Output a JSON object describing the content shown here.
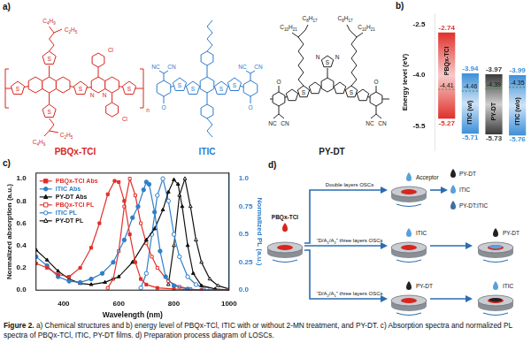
{
  "caption": {
    "label": "Figure 2.",
    "text": "a) Chemical structures and b) energy level of PBQx-TCl, ITIC with or without 2-MN treatment, and PY-DT. c) Absorption spectra and normalized PL spectra of PBQx-TCl, ITIC, PY-DT films. d) Preparation process diagram of LOSCs."
  },
  "panel_a": {
    "panel": "a)",
    "structures": [
      {
        "name": "PBQx-TCl",
        "color": "#d7261e",
        "atom_labels": [
          "S",
          "S",
          "S",
          "S",
          "S",
          "N",
          "N",
          "Cl",
          "Cl",
          "C4H9",
          "C2H5",
          "C4H9",
          "C2H5",
          "n"
        ]
      },
      {
        "name": "ITIC",
        "color": "#2b7bd0",
        "atom_labels": [
          "NC",
          "CN",
          "NC",
          "CN",
          "O",
          "O",
          "S",
          "S",
          "S",
          "S"
        ]
      },
      {
        "name": "PY-DT",
        "color": "#222222",
        "atom_labels": [
          "C10H21",
          "C8H17",
          "C10H21",
          "C8H17",
          "N",
          "S",
          "N",
          "S",
          "S",
          "O",
          "O",
          "NC",
          "CN",
          "NC",
          "CN"
        ]
      }
    ]
  },
  "chart_data": [
    {
      "type": "bar",
      "panel": "b)",
      "y_label": "Energy level (eV)",
      "categories": [
        "PBQx-TCl",
        "ITIC (w/)",
        "PY-DT",
        "ITIC (w/o)"
      ],
      "lumo": [
        -2.74,
        -3.94,
        -3.97,
        -3.99
      ],
      "homo": [
        -5.27,
        -5.71,
        -5.73,
        -5.76
      ],
      "level": [
        -4.41,
        -4.46,
        -4.39,
        -4.35
      ],
      "colors": [
        "#e0302a",
        "#3d8fd8",
        "#3a3a3a",
        "#3d8fd8"
      ],
      "ylim": [
        -6.2,
        -2.2
      ],
      "yticks": [
        -2.5,
        {
          "value": -4,
          "label": "-4.0"
        },
        -5.5
      ],
      "data_labels": true,
      "tick_labels": "y",
      "grid": false
    },
    {
      "type": "line",
      "panel": "c)",
      "x_label": "Wavelength (nm)",
      "y_label": "Normalized absorption (a.u.)",
      "y2_label": "Normalized PL (a.u.)",
      "xlim": [
        300,
        1000
      ],
      "xticks": [
        400,
        600,
        800,
        1000
      ],
      "ylim": [
        0,
        1.05
      ],
      "yticks": [
        {
          "value": 0,
          "label": "0.0"
        },
        0.2,
        0.4,
        0.6,
        0.8,
        {
          "value": 1,
          "label": "1.0"
        }
      ],
      "y2lim": [
        0,
        1.05
      ],
      "y2ticks": [
        {
          "value": 0,
          "label": "0.0"
        },
        0.25,
        0.5,
        0.75,
        {
          "value": 1,
          "label": "1.0"
        }
      ],
      "legend": "upper left",
      "grid": false,
      "series": [
        {
          "name": "PBQx-TCl Abs",
          "color": "#e0302a",
          "marker": "square",
          "x": [
            300,
            340,
            380,
            420,
            460,
            500,
            530,
            560,
            585,
            600,
            620,
            640,
            660,
            680,
            700,
            740,
            800,
            900,
            1000
          ],
          "values": [
            0.24,
            0.2,
            0.14,
            0.12,
            0.2,
            0.38,
            0.6,
            0.86,
            0.98,
            0.97,
            0.8,
            0.5,
            0.25,
            0.1,
            0.05,
            0.02,
            0.01,
            0,
            0
          ]
        },
        {
          "name": "ITIC Abs",
          "color": "#2e7fc9",
          "marker": "circle",
          "x": [
            300,
            340,
            380,
            420,
            460,
            500,
            540,
            580,
            620,
            650,
            670,
            690,
            700,
            710,
            730,
            750,
            770,
            800,
            850,
            900,
            1000
          ],
          "values": [
            0.3,
            0.22,
            0.12,
            0.08,
            0.07,
            0.1,
            0.15,
            0.25,
            0.45,
            0.65,
            0.75,
            0.9,
            0.97,
            0.95,
            0.7,
            0.35,
            0.12,
            0.04,
            0.01,
            0,
            0
          ]
        },
        {
          "name": "PY-DT Abs",
          "color": "#111111",
          "marker": "triangle",
          "x": [
            300,
            340,
            380,
            420,
            460,
            500,
            550,
            600,
            650,
            700,
            730,
            760,
            780,
            800,
            815,
            830,
            850,
            870,
            900,
            950,
            1000
          ],
          "values": [
            0.36,
            0.27,
            0.17,
            0.1,
            0.06,
            0.05,
            0.07,
            0.12,
            0.25,
            0.45,
            0.55,
            0.72,
            0.88,
            0.99,
            0.95,
            0.75,
            0.4,
            0.15,
            0.04,
            0.01,
            0
          ]
        },
        {
          "name": "PBQx-TCl PL",
          "color": "#e0302a",
          "marker": "square_open",
          "axis": "y2",
          "x": [
            560,
            580,
            600,
            620,
            640,
            660,
            680,
            700,
            720,
            740,
            780,
            820,
            860
          ],
          "values": [
            0.02,
            0.1,
            0.35,
            0.75,
            1.0,
            0.85,
            0.6,
            0.42,
            0.3,
            0.2,
            0.08,
            0.03,
            0.01
          ]
        },
        {
          "name": "ITIC PL",
          "color": "#2e7fc9",
          "marker": "circle_open",
          "axis": "y2",
          "x": [
            680,
            700,
            720,
            740,
            760,
            780,
            800,
            820,
            850,
            880,
            920
          ],
          "values": [
            0.02,
            0.15,
            0.5,
            0.85,
            1.0,
            0.8,
            0.5,
            0.3,
            0.12,
            0.05,
            0.01
          ]
        },
        {
          "name": "PY-DT PL",
          "color": "#111111",
          "marker": "triangle_open",
          "axis": "y2",
          "x": [
            780,
            800,
            820,
            840,
            860,
            880,
            900,
            930,
            960,
            1000
          ],
          "values": [
            0.05,
            0.4,
            0.85,
            1.0,
            0.75,
            0.45,
            0.25,
            0.1,
            0.04,
            0.01
          ]
        }
      ]
    }
  ],
  "panel_d": {
    "panel": "d)",
    "donor": {
      "label": "PBQx-TCl",
      "color": "#d7261e"
    },
    "rows": [
      {
        "route": "Double layers OSCs",
        "drop": {
          "label": "Acceptor",
          "color": "#5aa0dc"
        },
        "options": [
          {
            "label": "PY-DT",
            "color": "#222222"
          },
          {
            "label": "ITIC",
            "color": "#5aa0dc"
          },
          {
            "label": "PY-DT:ITIC",
            "color": "#3f6f9e"
          }
        ]
      },
      {
        "route": "“D/A1/A2” three layers OSCs",
        "drop": {
          "label": "ITIC",
          "color": "#5aa0dc"
        },
        "next": {
          "label": "PY-DT",
          "color": "#222222"
        }
      },
      {
        "route": "“D/A2/A1” three layers OSCs",
        "drop": {
          "label": "PY-DT",
          "color": "#222222"
        },
        "next": {
          "label": "ITIC",
          "color": "#5aa0dc"
        }
      }
    ]
  }
}
